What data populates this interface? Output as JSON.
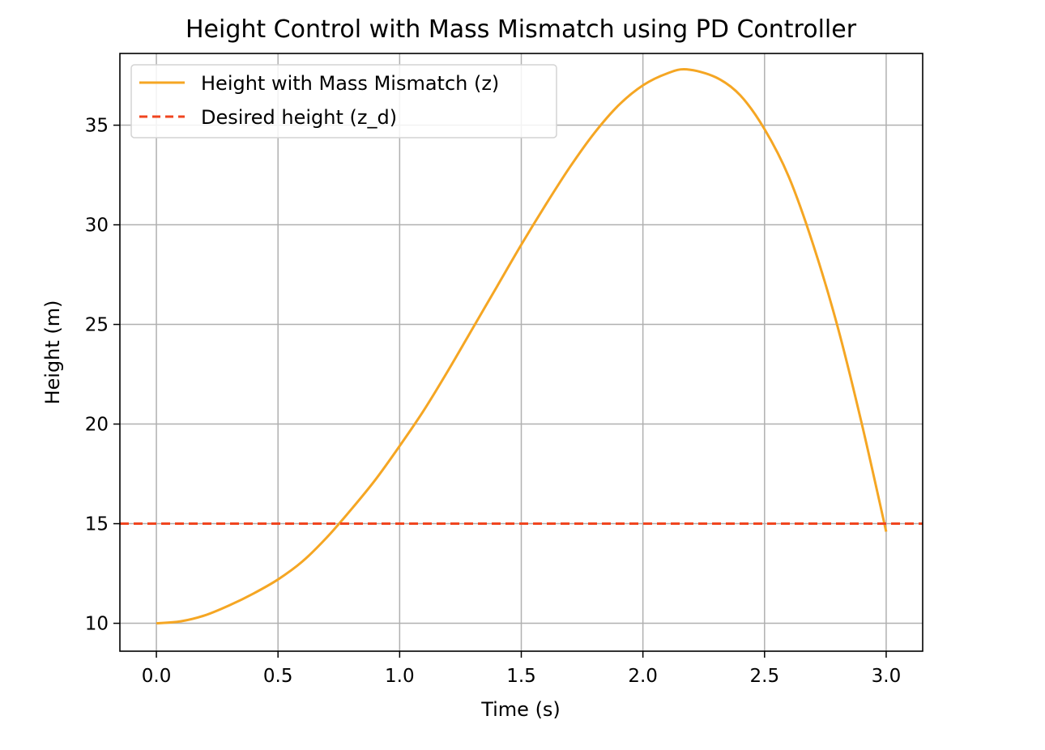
{
  "chart_data": {
    "type": "line",
    "title": "Height Control with Mass Mismatch using PD Controller",
    "xlabel": "Time (s)",
    "ylabel": "Height (m)",
    "xlim": [
      -0.15,
      3.15
    ],
    "ylim": [
      8.6,
      38.6
    ],
    "xticks": [
      0.0,
      0.5,
      1.0,
      1.5,
      2.0,
      2.5,
      3.0
    ],
    "xtick_labels": [
      "0.0",
      "0.5",
      "1.0",
      "1.5",
      "2.0",
      "2.5",
      "3.0"
    ],
    "yticks": [
      10,
      15,
      20,
      25,
      30,
      35
    ],
    "ytick_labels": [
      "10",
      "15",
      "20",
      "25",
      "30",
      "35"
    ],
    "grid": true,
    "legend_position": "top-left",
    "series": [
      {
        "name": "Height with Mass Mismatch (z)",
        "color": "#f5a623",
        "style": "solid",
        "x": [
          0.0,
          0.1,
          0.2,
          0.3,
          0.4,
          0.5,
          0.6,
          0.7,
          0.8,
          0.9,
          1.0,
          1.1,
          1.2,
          1.3,
          1.4,
          1.5,
          1.6,
          1.7,
          1.8,
          1.9,
          2.0,
          2.1,
          2.18,
          2.3,
          2.4,
          2.5,
          2.6,
          2.7,
          2.8,
          2.9,
          3.0
        ],
        "y": [
          10.0,
          10.1,
          10.4,
          10.9,
          11.5,
          12.2,
          13.1,
          14.3,
          15.7,
          17.2,
          18.9,
          20.7,
          22.7,
          24.8,
          26.9,
          29.0,
          31.0,
          32.9,
          34.6,
          36.0,
          37.0,
          37.6,
          37.8,
          37.4,
          36.5,
          34.8,
          32.4,
          29.0,
          24.9,
          20.0,
          14.6
        ]
      },
      {
        "name": "Desired height (z_d)",
        "color": "#f0451f",
        "style": "dashed",
        "x": [
          -0.15,
          3.15
        ],
        "y": [
          15,
          15
        ]
      }
    ]
  }
}
